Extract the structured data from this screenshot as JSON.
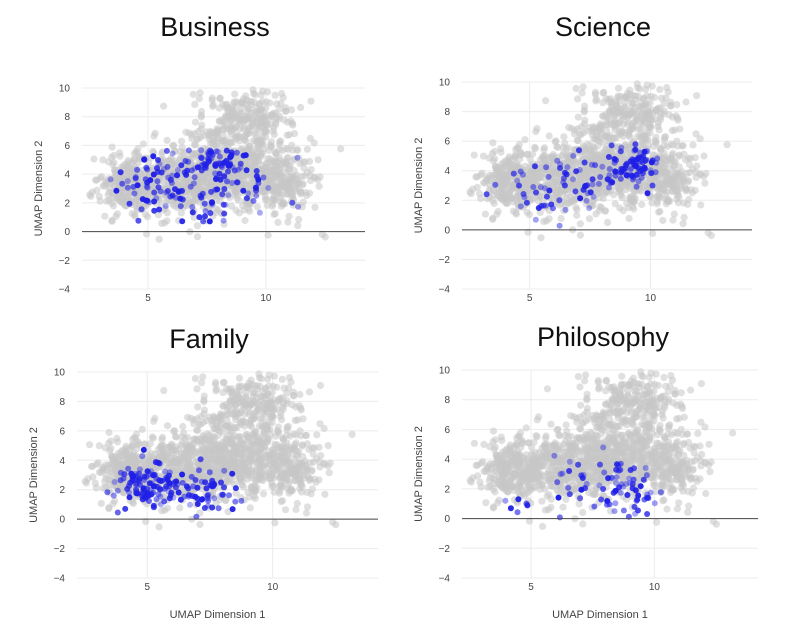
{
  "colors": {
    "background_points": "#c6c6c6",
    "highlight_points": "#1f1fe6",
    "gridline": "#ececec",
    "zeroline": "#444444"
  },
  "chart_data": [
    {
      "type": "scatter",
      "title": "Business",
      "xlabel": "",
      "ylabel": "UMAP Dimension 2",
      "xlim": [
        2.2,
        14.2
      ],
      "ylim": [
        -4,
        10
      ],
      "xticks": [
        5,
        10
      ],
      "yticks": [
        -4,
        -2,
        0,
        2,
        4,
        6,
        8,
        10
      ],
      "grid": true,
      "series": [
        {
          "role": "background",
          "clusters": [
            {
              "cx": 4.2,
              "cy": 3.2,
              "sx": 1.0,
              "sy": 1.5,
              "n": 260
            },
            {
              "cx": 6.5,
              "cy": 3.5,
              "sx": 1.6,
              "sy": 1.6,
              "n": 420
            },
            {
              "cx": 8.6,
              "cy": 4.5,
              "sx": 1.6,
              "sy": 1.9,
              "n": 420
            },
            {
              "cx": 9.2,
              "cy": 8.0,
              "sx": 1.4,
              "sy": 1.3,
              "n": 220
            },
            {
              "cx": 10.6,
              "cy": 3.5,
              "sx": 1.1,
              "sy": 1.7,
              "n": 220
            }
          ]
        },
        {
          "role": "highlight",
          "clusters": [
            {
              "cx": 5.2,
              "cy": 3.4,
              "sx": 1.3,
              "sy": 1.3,
              "n": 70
            },
            {
              "cx": 7.8,
              "cy": 4.9,
              "sx": 0.9,
              "sy": 0.8,
              "n": 55
            },
            {
              "cx": 8.5,
              "cy": 2.6,
              "sx": 1.4,
              "sy": 1.4,
              "n": 60
            }
          ]
        }
      ]
    },
    {
      "type": "scatter",
      "title": "Science",
      "xlabel": "",
      "ylabel": "UMAP Dimension 2",
      "xlim": [
        2.2,
        14.2
      ],
      "ylim": [
        -4,
        10
      ],
      "xticks": [
        5,
        10
      ],
      "yticks": [
        -4,
        -2,
        0,
        2,
        4,
        6,
        8,
        10
      ],
      "grid": true,
      "series": [
        {
          "role": "background",
          "clusters": [
            {
              "cx": 4.2,
              "cy": 3.2,
              "sx": 1.0,
              "sy": 1.5,
              "n": 260
            },
            {
              "cx": 6.5,
              "cy": 3.5,
              "sx": 1.6,
              "sy": 1.6,
              "n": 420
            },
            {
              "cx": 8.6,
              "cy": 4.5,
              "sx": 1.6,
              "sy": 1.9,
              "n": 420
            },
            {
              "cx": 9.2,
              "cy": 8.0,
              "sx": 1.4,
              "sy": 1.3,
              "n": 220
            },
            {
              "cx": 10.6,
              "cy": 3.5,
              "sx": 1.1,
              "sy": 1.7,
              "n": 220
            }
          ]
        },
        {
          "role": "highlight",
          "clusters": [
            {
              "cx": 9.2,
              "cy": 4.3,
              "sx": 0.7,
              "sy": 0.8,
              "n": 75
            },
            {
              "cx": 7.2,
              "cy": 3.3,
              "sx": 1.2,
              "sy": 1.4,
              "n": 45
            },
            {
              "cx": 5.2,
              "cy": 2.5,
              "sx": 0.9,
              "sy": 1.2,
              "n": 25
            }
          ]
        }
      ]
    },
    {
      "type": "scatter",
      "title": "Family",
      "xlabel": "UMAP Dimension 1",
      "ylabel": "UMAP Dimension 2",
      "xlim": [
        2.2,
        14.2
      ],
      "ylim": [
        -4,
        10
      ],
      "xticks": [
        5,
        10
      ],
      "yticks": [
        -4,
        -2,
        0,
        2,
        4,
        6,
        8,
        10
      ],
      "grid": true,
      "series": [
        {
          "role": "background",
          "clusters": [
            {
              "cx": 4.2,
              "cy": 3.2,
              "sx": 1.0,
              "sy": 1.5,
              "n": 260
            },
            {
              "cx": 6.5,
              "cy": 3.5,
              "sx": 1.6,
              "sy": 1.6,
              "n": 420
            },
            {
              "cx": 8.6,
              "cy": 4.5,
              "sx": 1.6,
              "sy": 1.9,
              "n": 420
            },
            {
              "cx": 9.2,
              "cy": 8.0,
              "sx": 1.4,
              "sy": 1.3,
              "n": 220
            },
            {
              "cx": 10.6,
              "cy": 3.5,
              "sx": 1.1,
              "sy": 1.7,
              "n": 220
            }
          ]
        },
        {
          "role": "highlight",
          "clusters": [
            {
              "cx": 5.0,
              "cy": 2.3,
              "sx": 0.9,
              "sy": 1.0,
              "n": 110
            },
            {
              "cx": 7.3,
              "cy": 2.0,
              "sx": 0.9,
              "sy": 1.0,
              "n": 55
            }
          ]
        }
      ]
    },
    {
      "type": "scatter",
      "title": "Philosophy",
      "xlabel": "UMAP Dimension 1",
      "ylabel": "UMAP Dimension 2",
      "xlim": [
        2.2,
        14.2
      ],
      "ylim": [
        -4,
        10
      ],
      "xticks": [
        5,
        10
      ],
      "yticks": [
        -4,
        -2,
        0,
        2,
        4,
        6,
        8,
        10
      ],
      "grid": true,
      "series": [
        {
          "role": "background",
          "clusters": [
            {
              "cx": 4.2,
              "cy": 3.2,
              "sx": 1.0,
              "sy": 1.5,
              "n": 260
            },
            {
              "cx": 6.5,
              "cy": 3.5,
              "sx": 1.6,
              "sy": 1.6,
              "n": 420
            },
            {
              "cx": 8.6,
              "cy": 4.5,
              "sx": 1.6,
              "sy": 1.9,
              "n": 420
            },
            {
              "cx": 9.2,
              "cy": 8.0,
              "sx": 1.4,
              "sy": 1.3,
              "n": 220
            },
            {
              "cx": 10.6,
              "cy": 3.5,
              "sx": 1.1,
              "sy": 1.7,
              "n": 220
            }
          ]
        },
        {
          "role": "highlight",
          "clusters": [
            {
              "cx": 8.9,
              "cy": 2.0,
              "sx": 0.9,
              "sy": 1.3,
              "n": 55
            },
            {
              "cx": 7.2,
              "cy": 2.2,
              "sx": 1.0,
              "sy": 1.2,
              "n": 22
            },
            {
              "cx": 4.4,
              "cy": 1.0,
              "sx": 0.6,
              "sy": 0.6,
              "n": 6
            }
          ]
        }
      ]
    }
  ]
}
